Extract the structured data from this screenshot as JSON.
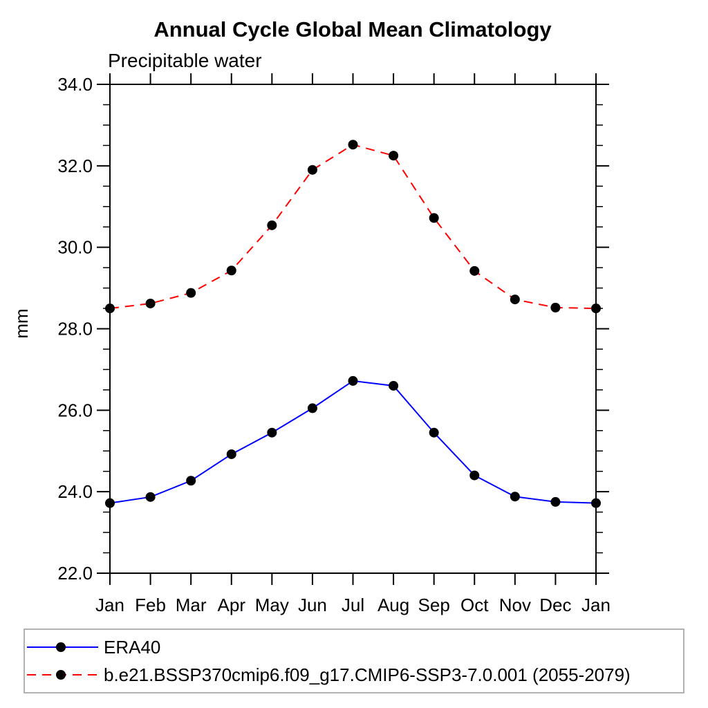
{
  "page": {
    "background_color": "#ffffff"
  },
  "chart_data": {
    "type": "line",
    "title": "Annual Cycle Global Mean Climatology",
    "subtitle": "Precipitable water",
    "xlabel": "",
    "ylabel": "mm",
    "ylim": [
      22.0,
      34.0
    ],
    "ytick_major_step": 2.0,
    "ytick_minor_step": 0.5,
    "ytick_labels": [
      "22.0",
      "24.0",
      "26.0",
      "28.0",
      "30.0",
      "32.0",
      "34.0"
    ],
    "grid": false,
    "categories": [
      "Jan",
      "Feb",
      "Mar",
      "Apr",
      "May",
      "Jun",
      "Jul",
      "Aug",
      "Sep",
      "Oct",
      "Nov",
      "Dec",
      "Jan"
    ],
    "series": [
      {
        "name": "ERA40",
        "line_color": "#0000ff",
        "line_style": "solid",
        "line_width": 2,
        "marker": "filled-circle",
        "marker_color": "#000000",
        "values": [
          23.72,
          23.87,
          24.27,
          24.92,
          25.45,
          26.05,
          26.72,
          26.6,
          25.45,
          24.4,
          23.88,
          23.75,
          23.72
        ]
      },
      {
        "name": "b.e21.BSSP370cmip6.f09_g17.CMIP6-SSP3-7.0.001 (2055-2079)",
        "line_color": "#ff0000",
        "line_style": "dashed",
        "line_width": 2,
        "marker": "filled-circle",
        "marker_color": "#000000",
        "values": [
          28.5,
          28.62,
          28.88,
          29.43,
          30.54,
          31.9,
          32.52,
          32.25,
          30.72,
          29.42,
          28.72,
          28.52,
          28.5
        ]
      }
    ],
    "legend": {
      "position": "bottom-left",
      "border_color": "#999999"
    }
  }
}
